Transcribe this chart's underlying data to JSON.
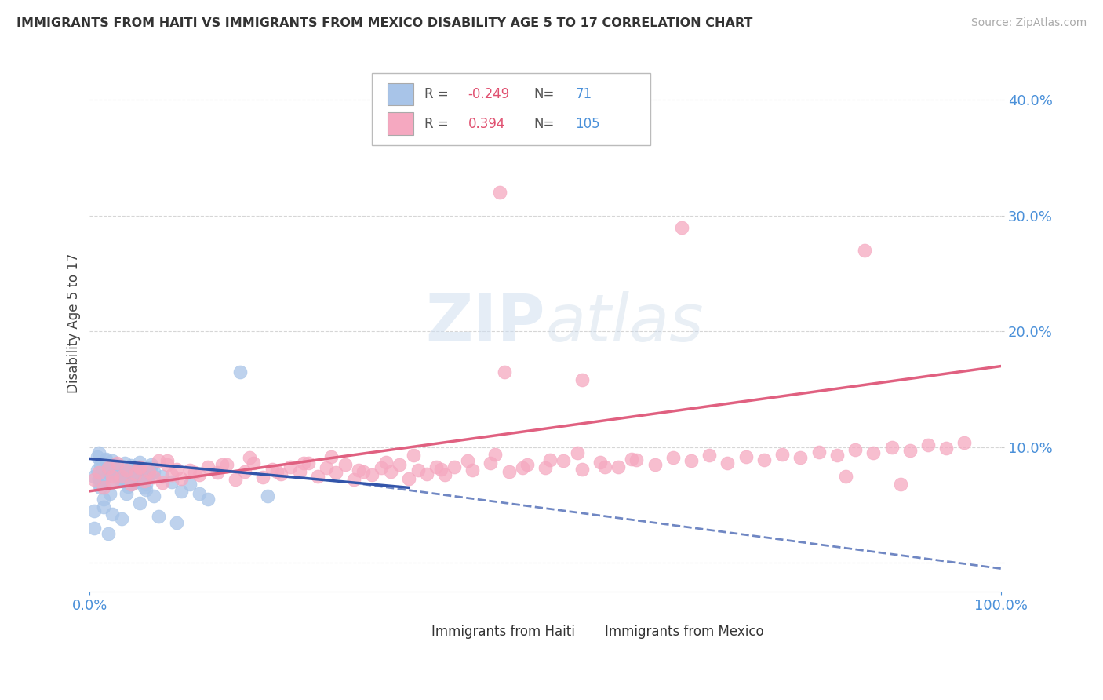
{
  "title": "IMMIGRANTS FROM HAITI VS IMMIGRANTS FROM MEXICO DISABILITY AGE 5 TO 17 CORRELATION CHART",
  "source": "Source: ZipAtlas.com",
  "ylabel": "Disability Age 5 to 17",
  "xlim": [
    0.0,
    1.0
  ],
  "ylim": [
    -0.025,
    0.44
  ],
  "yticks": [
    0.0,
    0.1,
    0.2,
    0.3,
    0.4
  ],
  "ytick_labels": [
    "",
    "10.0%",
    "20.0%",
    "30.0%",
    "40.0%"
  ],
  "haiti_color": "#a8c4e8",
  "mexico_color": "#f5a8c0",
  "haiti_line_color": "#3355aa",
  "mexico_line_color": "#e06080",
  "legend_haiti_label": "Immigrants from Haiti",
  "legend_mexico_label": "Immigrants from Mexico",
  "watermark": "ZIPatlas",
  "background_color": "#ffffff",
  "grid_color": "#cccccc",
  "haiti_scatter_x": [
    0.005,
    0.008,
    0.01,
    0.012,
    0.015,
    0.018,
    0.02,
    0.022,
    0.025,
    0.028,
    0.03,
    0.032,
    0.035,
    0.038,
    0.04,
    0.042,
    0.045,
    0.048,
    0.05,
    0.052,
    0.055,
    0.058,
    0.06,
    0.062,
    0.065,
    0.068,
    0.07,
    0.008,
    0.012,
    0.018,
    0.022,
    0.028,
    0.032,
    0.038,
    0.042,
    0.048,
    0.052,
    0.058,
    0.062,
    0.068,
    0.01,
    0.015,
    0.025,
    0.035,
    0.045,
    0.055,
    0.065,
    0.01,
    0.02,
    0.03,
    0.04,
    0.05,
    0.06,
    0.07,
    0.08,
    0.09,
    0.1,
    0.11,
    0.12,
    0.13,
    0.005,
    0.015,
    0.025,
    0.035,
    0.055,
    0.075,
    0.095,
    0.005,
    0.02,
    0.165,
    0.195
  ],
  "haiti_scatter_y": [
    0.075,
    0.08,
    0.068,
    0.085,
    0.072,
    0.088,
    0.078,
    0.082,
    0.07,
    0.076,
    0.083,
    0.079,
    0.074,
    0.086,
    0.071,
    0.077,
    0.084,
    0.069,
    0.081,
    0.073,
    0.087,
    0.075,
    0.08,
    0.068,
    0.076,
    0.083,
    0.079,
    0.092,
    0.065,
    0.09,
    0.06,
    0.085,
    0.073,
    0.078,
    0.066,
    0.082,
    0.07,
    0.077,
    0.063,
    0.085,
    0.095,
    0.055,
    0.088,
    0.072,
    0.068,
    0.079,
    0.075,
    0.073,
    0.082,
    0.077,
    0.06,
    0.071,
    0.065,
    0.058,
    0.075,
    0.07,
    0.062,
    0.068,
    0.06,
    0.055,
    0.045,
    0.048,
    0.042,
    0.038,
    0.052,
    0.04,
    0.035,
    0.03,
    0.025,
    0.165,
    0.058
  ],
  "mexico_scatter_x": [
    0.005,
    0.01,
    0.015,
    0.02,
    0.025,
    0.03,
    0.035,
    0.04,
    0.045,
    0.05,
    0.055,
    0.06,
    0.065,
    0.07,
    0.075,
    0.08,
    0.085,
    0.09,
    0.095,
    0.1,
    0.11,
    0.12,
    0.13,
    0.14,
    0.15,
    0.16,
    0.17,
    0.18,
    0.19,
    0.2,
    0.21,
    0.22,
    0.23,
    0.24,
    0.25,
    0.26,
    0.27,
    0.28,
    0.29,
    0.3,
    0.31,
    0.32,
    0.33,
    0.34,
    0.35,
    0.36,
    0.37,
    0.38,
    0.39,
    0.4,
    0.42,
    0.44,
    0.46,
    0.48,
    0.5,
    0.52,
    0.54,
    0.56,
    0.58,
    0.6,
    0.62,
    0.64,
    0.66,
    0.68,
    0.7,
    0.72,
    0.74,
    0.76,
    0.78,
    0.8,
    0.82,
    0.84,
    0.86,
    0.88,
    0.9,
    0.92,
    0.94,
    0.96,
    0.025,
    0.055,
    0.085,
    0.115,
    0.145,
    0.175,
    0.205,
    0.235,
    0.265,
    0.295,
    0.325,
    0.355,
    0.385,
    0.415,
    0.445,
    0.475,
    0.505,
    0.535,
    0.565,
    0.595,
    0.455,
    0.54,
    0.83,
    0.89,
    0.45,
    0.65,
    0.85
  ],
  "mexico_scatter_y": [
    0.072,
    0.078,
    0.065,
    0.082,
    0.07,
    0.086,
    0.075,
    0.08,
    0.068,
    0.077,
    0.083,
    0.071,
    0.079,
    0.074,
    0.088,
    0.069,
    0.085,
    0.076,
    0.081,
    0.073,
    0.08,
    0.076,
    0.083,
    0.078,
    0.085,
    0.072,
    0.079,
    0.086,
    0.074,
    0.081,
    0.077,
    0.083,
    0.079,
    0.086,
    0.075,
    0.082,
    0.078,
    0.085,
    0.072,
    0.079,
    0.076,
    0.082,
    0.079,
    0.085,
    0.073,
    0.08,
    0.077,
    0.083,
    0.076,
    0.083,
    0.08,
    0.086,
    0.079,
    0.085,
    0.082,
    0.088,
    0.081,
    0.087,
    0.083,
    0.089,
    0.085,
    0.091,
    0.088,
    0.093,
    0.086,
    0.092,
    0.089,
    0.094,
    0.091,
    0.096,
    0.093,
    0.098,
    0.095,
    0.1,
    0.097,
    0.102,
    0.099,
    0.104,
    0.075,
    0.082,
    0.088,
    0.078,
    0.085,
    0.091,
    0.079,
    0.086,
    0.092,
    0.08,
    0.087,
    0.093,
    0.081,
    0.088,
    0.094,
    0.082,
    0.089,
    0.095,
    0.083,
    0.09,
    0.165,
    0.158,
    0.075,
    0.068,
    0.32,
    0.29,
    0.27
  ]
}
